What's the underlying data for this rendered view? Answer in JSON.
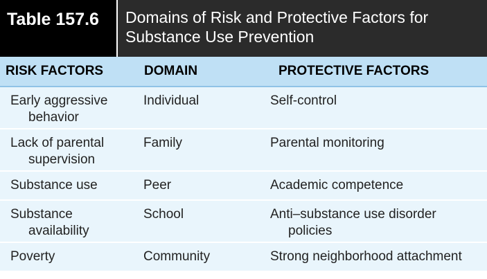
{
  "table": {
    "number": "Table 157.6",
    "title_line1": "Domains of Risk and Protective Factors for",
    "title_line2": "Substance Use Prevention",
    "headers": {
      "risk": "RISK FACTORS",
      "domain": "DOMAIN",
      "protective": "PROTECTIVE FACTORS"
    },
    "rows": [
      {
        "risk_line1": "Early aggressive",
        "risk_line2": "behavior",
        "domain": "Individual",
        "protective_line1": "Self-control",
        "protective_line2": ""
      },
      {
        "risk_line1": "Lack of parental",
        "risk_line2": "supervision",
        "domain": "Family",
        "protective_line1": "Parental monitoring",
        "protective_line2": ""
      },
      {
        "risk_line1": "Substance use",
        "risk_line2": "",
        "domain": "Peer",
        "protective_line1": "Academic competence",
        "protective_line2": ""
      },
      {
        "risk_line1": "Substance",
        "risk_line2": "availability",
        "domain": "School",
        "protective_line1": "Anti–substance use disorder",
        "protective_line2": "policies"
      },
      {
        "risk_line1": "Poverty",
        "risk_line2": "",
        "domain": "Community",
        "protective_line1": "Strong neighborhood attachment",
        "protective_line2": ""
      }
    ]
  }
}
